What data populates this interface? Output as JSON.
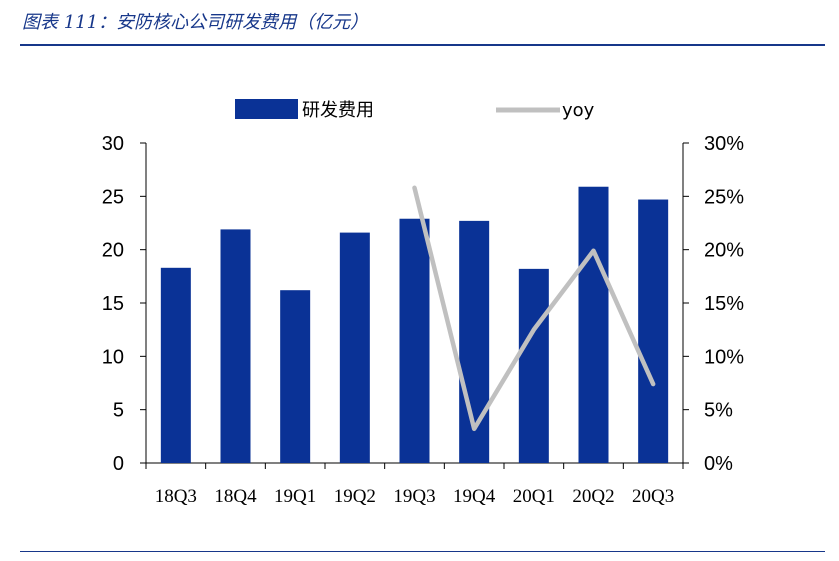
{
  "figure": {
    "title": "图表 111：安防核心公司研发费用（亿元）"
  },
  "chart_data": {
    "type": "bar",
    "categories": [
      "18Q3",
      "18Q4",
      "19Q1",
      "19Q2",
      "19Q3",
      "19Q4",
      "20Q1",
      "20Q2",
      "20Q3"
    ],
    "series": [
      {
        "name": "研发费用",
        "type": "bar",
        "axis": "left",
        "values": [
          18.3,
          21.9,
          16.2,
          21.6,
          22.9,
          22.7,
          18.2,
          25.9,
          24.7
        ]
      },
      {
        "name": "yoy",
        "type": "line",
        "axis": "right",
        "values": [
          null,
          null,
          null,
          null,
          0.258,
          0.032,
          0.125,
          0.199,
          0.074
        ]
      }
    ],
    "ylim": [
      0,
      30
    ],
    "yticks": [
      "0",
      "5",
      "10",
      "15",
      "20",
      "25",
      "30"
    ],
    "y2lim": [
      0,
      0.3
    ],
    "y2ticks": [
      "0%",
      "5%",
      "10%",
      "15%",
      "20%",
      "25%",
      "30%"
    ],
    "legend": {
      "position": "top",
      "bar_label": "研发费用",
      "line_label": "yoy"
    },
    "colors": {
      "bar": "#0a3296",
      "line": "#c0c0c0",
      "title": "#17378a"
    }
  }
}
